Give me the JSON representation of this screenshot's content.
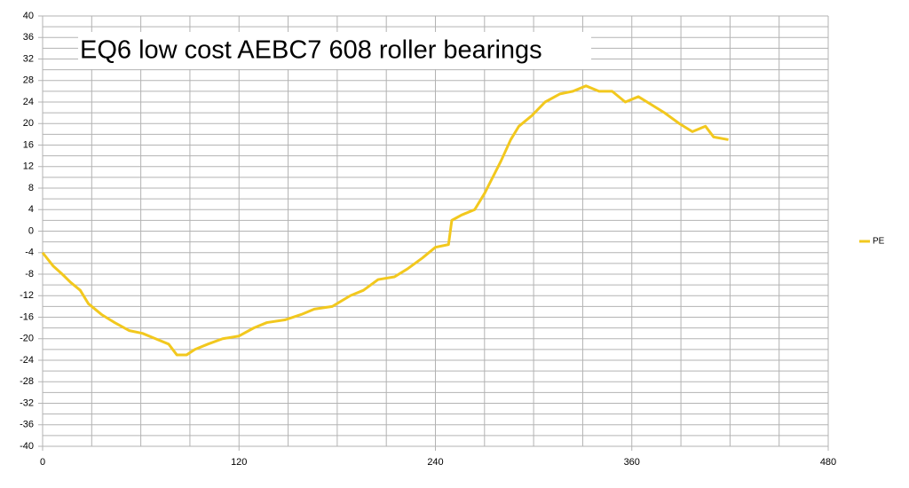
{
  "chart_data": {
    "type": "line",
    "title": "EQ6 low cost AEBC7 608 roller bearings",
    "x": [
      0,
      6.5,
      12,
      17,
      23,
      28,
      36,
      44,
      53,
      61,
      69,
      77,
      82,
      88,
      93,
      101,
      110,
      120,
      129,
      137,
      148,
      158,
      166,
      177,
      188,
      196,
      205,
      215,
      223,
      232,
      240,
      248,
      250,
      256,
      264,
      270,
      275,
      280,
      286,
      291,
      299,
      307,
      316,
      324,
      332,
      340,
      348,
      356,
      364,
      372,
      380,
      389,
      397,
      405,
      410,
      419
    ],
    "series": [
      {
        "name": "PE",
        "color": "#f2c81e",
        "values": [
          -4,
          -6.5,
          -8,
          -9.5,
          -11,
          -13.5,
          -15.5,
          -17,
          -18.5,
          -19,
          -20,
          -21,
          -23,
          -23,
          -22,
          -21,
          -20,
          -19.5,
          -18,
          -17,
          -16.5,
          -15.5,
          -14.5,
          -14,
          -12,
          -11,
          -9,
          -8.5,
          -7,
          -5,
          -3,
          -2.5,
          2,
          3,
          4,
          7,
          10,
          13,
          17,
          19.5,
          21.5,
          24,
          25.5,
          26,
          27,
          26,
          26,
          24,
          25,
          23.5,
          22,
          20,
          18.5,
          19.5,
          17.5,
          17
        ]
      }
    ],
    "xlim": [
      0,
      480
    ],
    "xticks": [
      0,
      120,
      240,
      360,
      480
    ],
    "xgrid": [
      0,
      30,
      60,
      90,
      120,
      150,
      180,
      210,
      240,
      270,
      300,
      330,
      360,
      390,
      420,
      450,
      480
    ],
    "ylim": [
      -40,
      40
    ],
    "yticks": [
      -40,
      -36,
      -32,
      -28,
      -24,
      -20,
      -16,
      -12,
      -8,
      -4,
      0,
      4,
      8,
      12,
      16,
      20,
      24,
      28,
      32,
      36,
      40
    ],
    "ygrid": [
      -40,
      -38,
      -36,
      -34,
      -32,
      -30,
      -28,
      -26,
      -24,
      -22,
      -20,
      -18,
      -16,
      -14,
      -12,
      -10,
      -8,
      -6,
      -4,
      -2,
      0,
      2,
      4,
      6,
      8,
      10,
      12,
      14,
      16,
      18,
      20,
      22,
      24,
      26,
      28,
      30,
      32,
      34,
      36,
      38,
      40
    ],
    "legend": "right"
  }
}
